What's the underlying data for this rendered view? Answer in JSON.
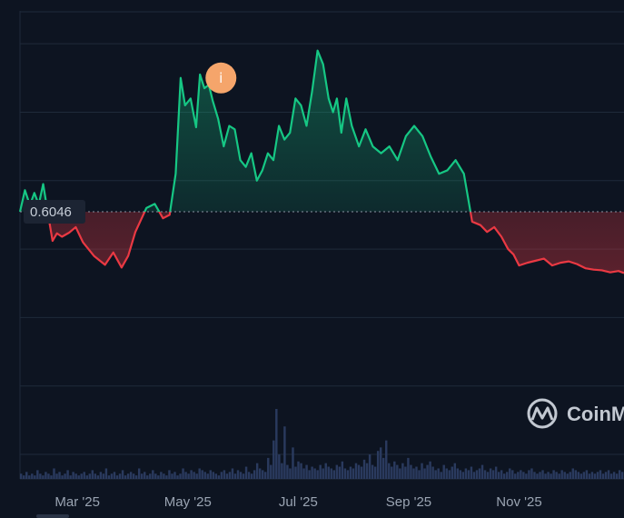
{
  "chart_data": {
    "type": "area",
    "baseline": {
      "value": 0.6046,
      "label": "0.6046"
    },
    "colors": {
      "up": "#16c784",
      "down": "#ea3943",
      "volume": "#2a3a5e",
      "background": "#0d1421",
      "event_marker": "#f5a56b"
    },
    "x_ticks": [
      {
        "x": 2,
        "label": "Mar '25"
      },
      {
        "x": 4,
        "label": "May '25"
      },
      {
        "x": 6,
        "label": "Jul '25"
      },
      {
        "x": 8,
        "label": "Sep '25"
      },
      {
        "x": 10,
        "label": "Nov '25"
      }
    ],
    "xlim": [
      0.96,
      11.9
    ],
    "ylim": [
      0.25,
      0.89
    ],
    "grid": "horizontal",
    "series": [
      {
        "x": [
          0.96,
          1.05,
          1.14,
          1.22,
          1.3,
          1.38,
          1.47,
          1.55,
          1.63,
          1.72,
          1.85,
          1.97,
          2.1,
          2.3,
          2.5,
          2.65,
          2.8,
          2.92,
          3.05,
          3.25,
          3.4,
          3.55,
          3.67,
          3.78,
          3.87,
          3.95,
          4.05,
          4.15,
          4.22,
          4.3,
          4.38,
          4.45,
          4.55,
          4.65,
          4.75,
          4.85,
          4.95,
          5.05,
          5.15,
          5.25,
          5.35,
          5.45,
          5.55,
          5.65,
          5.75,
          5.85,
          5.95,
          6.05,
          6.15,
          6.25,
          6.35,
          6.45,
          6.55,
          6.63,
          6.7,
          6.78,
          6.87,
          6.97,
          7.1,
          7.22,
          7.35,
          7.5,
          7.65,
          7.8,
          7.95,
          8.1,
          8.25,
          8.4,
          8.55,
          8.7,
          8.85,
          9.0,
          9.15,
          9.3,
          9.42,
          9.55,
          9.68,
          9.8,
          9.9,
          10.0,
          10.15,
          10.3,
          10.45,
          10.6,
          10.75,
          10.9,
          11.05,
          11.2,
          11.35,
          11.5,
          11.65,
          11.8,
          11.9
        ],
        "values": [
          0.6046,
          0.636,
          0.614,
          0.632,
          0.615,
          0.645,
          0.6,
          0.562,
          0.573,
          0.568,
          0.574,
          0.582,
          0.56,
          0.54,
          0.527,
          0.545,
          0.523,
          0.54,
          0.575,
          0.61,
          0.616,
          0.595,
          0.6,
          0.66,
          0.8,
          0.76,
          0.77,
          0.728,
          0.805,
          0.785,
          0.79,
          0.767,
          0.74,
          0.7,
          0.73,
          0.725,
          0.68,
          0.67,
          0.69,
          0.65,
          0.665,
          0.69,
          0.68,
          0.73,
          0.71,
          0.72,
          0.77,
          0.76,
          0.73,
          0.78,
          0.84,
          0.82,
          0.77,
          0.75,
          0.77,
          0.72,
          0.77,
          0.73,
          0.7,
          0.725,
          0.7,
          0.69,
          0.7,
          0.68,
          0.715,
          0.73,
          0.715,
          0.685,
          0.66,
          0.665,
          0.68,
          0.66,
          0.59,
          0.585,
          0.575,
          0.582,
          0.568,
          0.55,
          0.542,
          0.526,
          0.53,
          0.533,
          0.536,
          0.526,
          0.53,
          0.532,
          0.528,
          0.522,
          0.52,
          0.519,
          0.516,
          0.518,
          0.515
        ]
      }
    ],
    "volume": [
      3,
      2,
      4,
      2,
      3,
      2,
      5,
      3,
      2,
      4,
      3,
      2,
      6,
      3,
      4,
      2,
      3,
      5,
      2,
      4,
      3,
      2,
      3,
      4,
      2,
      3,
      5,
      3,
      2,
      4,
      3,
      6,
      2,
      3,
      4,
      2,
      3,
      5,
      2,
      3,
      4,
      3,
      2,
      6,
      3,
      4,
      2,
      3,
      5,
      3,
      2,
      4,
      3,
      2,
      5,
      3,
      4,
      2,
      3,
      6,
      4,
      3,
      5,
      4,
      3,
      6,
      5,
      4,
      3,
      5,
      4,
      3,
      2,
      4,
      5,
      3,
      4,
      6,
      3,
      5,
      4,
      3,
      7,
      4,
      3,
      5,
      9,
      6,
      5,
      4,
      12,
      8,
      22,
      40,
      14,
      9,
      30,
      8,
      6,
      18,
      7,
      10,
      9,
      6,
      8,
      5,
      7,
      6,
      5,
      8,
      6,
      9,
      7,
      6,
      5,
      8,
      7,
      10,
      6,
      5,
      7,
      6,
      9,
      8,
      7,
      11,
      9,
      14,
      8,
      7,
      16,
      18,
      12,
      22,
      9,
      7,
      10,
      8,
      6,
      9,
      7,
      12,
      8,
      6,
      7,
      5,
      9,
      6,
      8,
      10,
      7,
      5,
      6,
      4,
      8,
      6,
      5,
      7,
      9,
      6,
      5,
      4,
      6,
      5,
      7,
      4,
      5,
      6,
      8,
      5,
      4,
      6,
      5,
      7,
      4,
      5,
      3,
      4,
      6,
      5,
      3,
      4,
      5,
      4,
      3,
      5,
      6,
      4,
      3,
      4,
      5,
      3,
      4,
      3,
      5,
      4,
      3,
      5,
      4,
      3,
      4,
      6,
      5,
      4,
      3,
      4,
      5,
      3,
      4,
      3,
      4,
      5,
      3,
      4,
      5,
      3,
      4,
      3,
      5,
      4
    ],
    "event_marker": {
      "x": 4.6,
      "y": 0.8,
      "symbol": "i"
    }
  },
  "watermark": {
    "text": "CoinM"
  }
}
